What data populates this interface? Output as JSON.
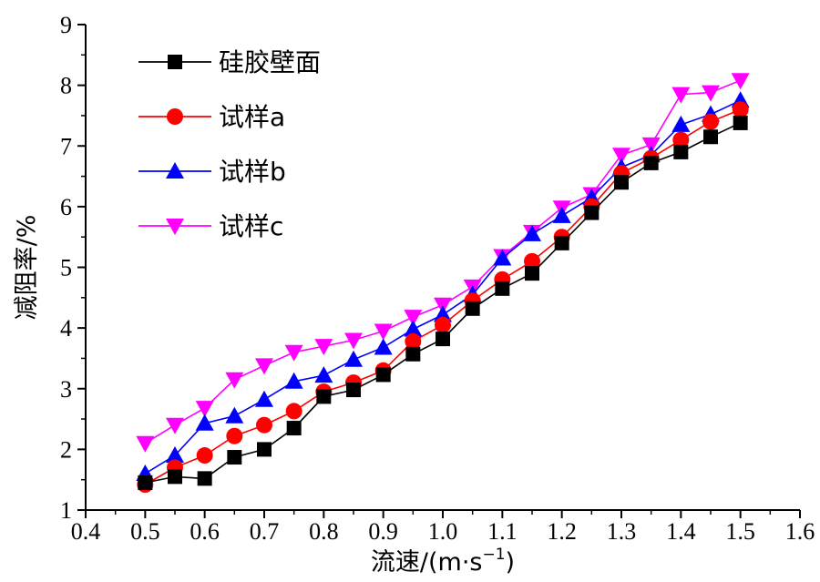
{
  "chart_data": {
    "type": "line",
    "xlabel": "流速/(m·s",
    "xlabel_sup": "−1",
    "xlabel_close": ")",
    "ylabel": "减阻率/%",
    "xlim": [
      0.4,
      1.6
    ],
    "ylim": [
      1,
      9
    ],
    "x_ticks": [
      "0.4",
      "0.5",
      "0.6",
      "0.7",
      "0.8",
      "0.9",
      "1.0",
      "1.1",
      "1.2",
      "1.3",
      "1.4",
      "1.5",
      "1.6"
    ],
    "y_ticks": [
      "1",
      "2",
      "3",
      "4",
      "5",
      "6",
      "7",
      "8",
      "9"
    ],
    "grid": false,
    "legend_position": "top-left",
    "x": [
      0.5,
      0.55,
      0.6,
      0.65,
      0.7,
      0.75,
      0.8,
      0.85,
      0.9,
      0.95,
      1.0,
      1.05,
      1.1,
      1.15,
      1.2,
      1.25,
      1.3,
      1.35,
      1.4,
      1.45,
      1.5
    ],
    "series": [
      {
        "name": "硅胶壁面",
        "color": "#000000",
        "marker": "square",
        "values": [
          1.45,
          1.55,
          1.52,
          1.87,
          2.0,
          2.35,
          2.87,
          2.98,
          3.23,
          3.57,
          3.82,
          4.32,
          4.65,
          4.9,
          5.4,
          5.9,
          6.4,
          6.72,
          6.9,
          7.15,
          7.38
        ]
      },
      {
        "name": "试样a",
        "color": "#ff0000",
        "marker": "circle",
        "values": [
          1.42,
          1.7,
          1.9,
          2.22,
          2.4,
          2.63,
          2.95,
          3.1,
          3.3,
          3.78,
          4.05,
          4.45,
          4.8,
          5.1,
          5.5,
          6.0,
          6.55,
          6.8,
          7.1,
          7.4,
          7.6
        ]
      },
      {
        "name": "试样b",
        "color": "#0000ff",
        "marker": "triangle-up",
        "values": [
          1.6,
          1.9,
          2.43,
          2.55,
          2.82,
          3.12,
          3.22,
          3.48,
          3.68,
          3.98,
          4.22,
          4.55,
          5.15,
          5.55,
          5.85,
          6.15,
          6.65,
          6.85,
          7.35,
          7.52,
          7.75
        ]
      },
      {
        "name": "试样c",
        "color": "#ff00ff",
        "marker": "triangle-down",
        "values": [
          2.1,
          2.4,
          2.68,
          3.15,
          3.38,
          3.6,
          3.7,
          3.8,
          3.95,
          4.18,
          4.38,
          4.68,
          5.18,
          5.58,
          5.98,
          6.2,
          6.85,
          7.02,
          7.85,
          7.88,
          8.08
        ]
      }
    ]
  }
}
